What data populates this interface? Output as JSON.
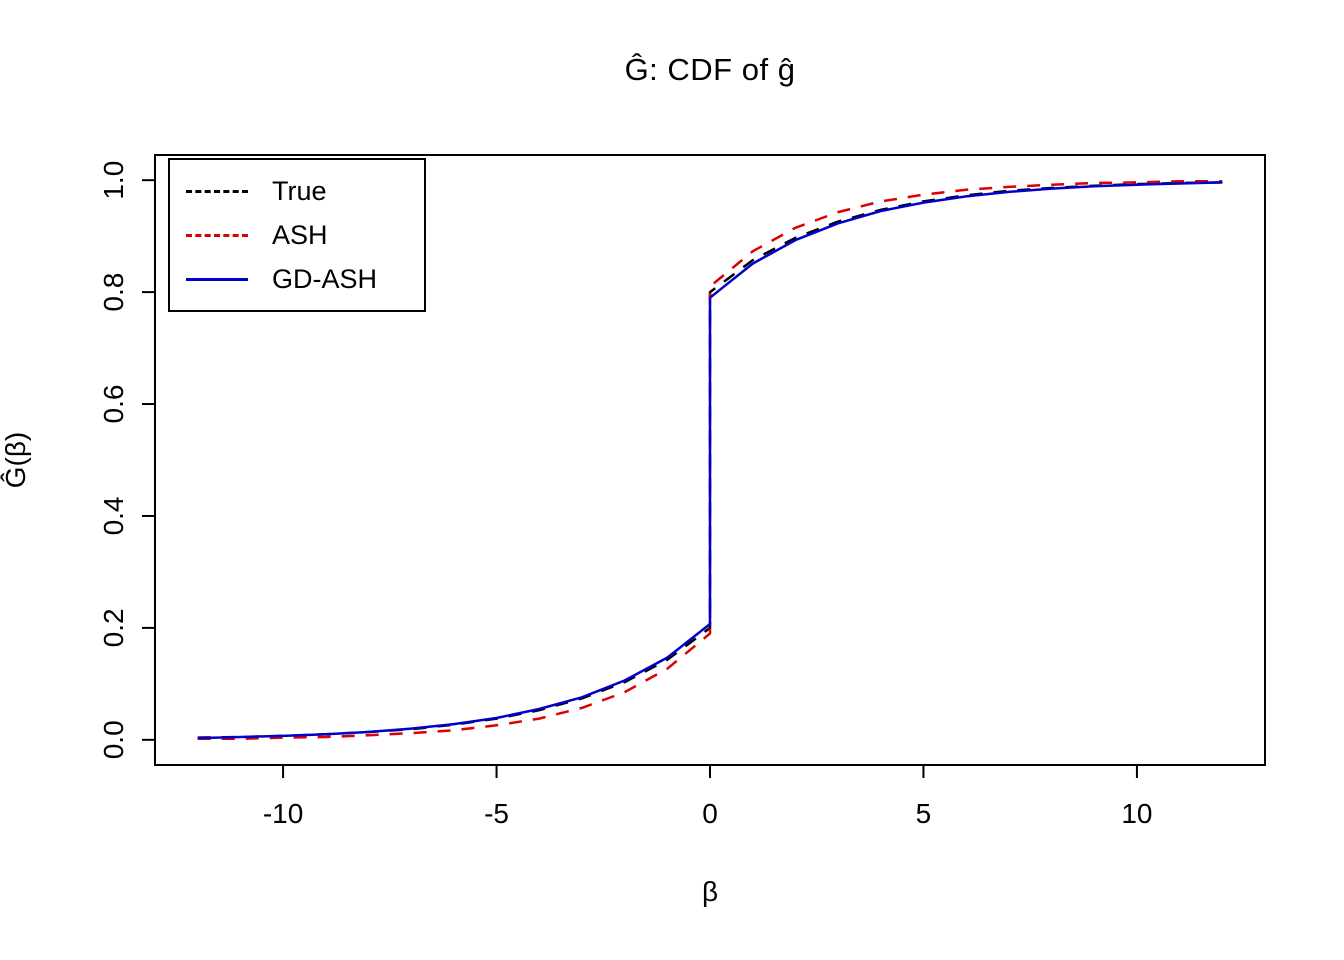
{
  "title": "Ĝ: CDF of ĝ",
  "chart_data": {
    "type": "line",
    "title": "Ĝ: CDF of ĝ",
    "xlabel": "β",
    "ylabel": "Ĝ(β)",
    "xlim": [
      -13,
      13
    ],
    "ylim": [
      -0.045,
      1.045
    ],
    "x_ticks": [
      -10,
      -5,
      0,
      5,
      10
    ],
    "x_tick_labels": [
      "-10",
      "-5",
      "0",
      "5",
      "10"
    ],
    "y_ticks": [
      0.0,
      0.2,
      0.4,
      0.6,
      0.8,
      1.0
    ],
    "y_tick_labels": [
      "0.0",
      "0.2",
      "0.4",
      "0.6",
      "0.8",
      "1.0"
    ],
    "grid": false,
    "legend_position": "top-left",
    "series": [
      {
        "name": "True",
        "color": "#000000",
        "style": "dashed",
        "x": [
          -12,
          -11,
          -10,
          -9,
          -8,
          -7,
          -6,
          -5,
          -4,
          -3,
          -2,
          -1,
          0,
          0,
          1,
          2,
          3,
          4,
          5,
          6,
          7,
          8,
          9,
          10,
          11,
          12
        ],
        "y": [
          0.004,
          0.005,
          0.007,
          0.01,
          0.014,
          0.019,
          0.027,
          0.038,
          0.053,
          0.074,
          0.103,
          0.143,
          0.2,
          0.8,
          0.857,
          0.897,
          0.926,
          0.947,
          0.962,
          0.973,
          0.981,
          0.986,
          0.99,
          0.993,
          0.995,
          0.996
        ]
      },
      {
        "name": "ASH",
        "color": "#DE0000",
        "style": "dashed",
        "x": [
          -12,
          -11,
          -10,
          -9,
          -8,
          -7,
          -6,
          -5,
          -4,
          -3,
          -2,
          -1,
          0,
          0,
          1,
          2,
          3,
          4,
          5,
          6,
          7,
          8,
          9,
          10,
          11,
          12
        ],
        "y": [
          0.002,
          0.002,
          0.004,
          0.005,
          0.008,
          0.012,
          0.017,
          0.026,
          0.038,
          0.057,
          0.085,
          0.127,
          0.19,
          0.81,
          0.873,
          0.915,
          0.943,
          0.962,
          0.974,
          0.983,
          0.988,
          0.992,
          0.995,
          0.996,
          0.998,
          0.998
        ]
      },
      {
        "name": "GD-ASH",
        "color": "#0000CC",
        "style": "solid",
        "x": [
          -12,
          -11,
          -10,
          -9,
          -8,
          -7,
          -6,
          -5,
          -4,
          -3,
          -2,
          -1,
          0,
          0,
          1,
          2,
          3,
          4,
          5,
          6,
          7,
          8,
          9,
          10,
          11,
          12
        ],
        "y": [
          0.003,
          0.005,
          0.007,
          0.01,
          0.014,
          0.02,
          0.028,
          0.039,
          0.055,
          0.076,
          0.106,
          0.147,
          0.207,
          0.79,
          0.851,
          0.893,
          0.923,
          0.945,
          0.96,
          0.971,
          0.979,
          0.985,
          0.989,
          0.992,
          0.994,
          0.996
        ]
      }
    ]
  },
  "legend": {
    "entries": [
      {
        "label": "True",
        "color": "#000000",
        "style": "dashed"
      },
      {
        "label": "ASH",
        "color": "#DE0000",
        "style": "dashed"
      },
      {
        "label": "GD-ASH",
        "color": "#0000CC",
        "style": "solid"
      }
    ]
  }
}
